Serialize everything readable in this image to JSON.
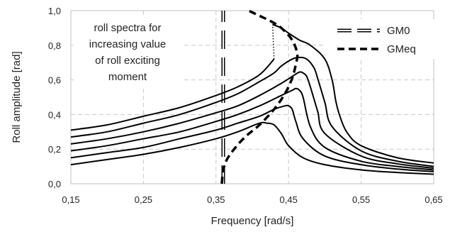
{
  "chart_data": {
    "type": "line",
    "xlabel": "Frequency  [rad/s]",
    "ylabel": "Roll amplitude [rad]",
    "xlim": [
      0.15,
      0.65
    ],
    "ylim": [
      0.0,
      1.0
    ],
    "x_ticks": [
      0.15,
      0.25,
      0.35,
      0.45,
      0.55,
      0.65
    ],
    "x_tick_labels": [
      "0,15",
      "0,25",
      "0,35",
      "0,45",
      "0,55",
      "0,65"
    ],
    "y_ticks": [
      0.0,
      0.2,
      0.4,
      0.6,
      0.8,
      1.0
    ],
    "y_tick_labels": [
      "0,0",
      "0,2",
      "0,4",
      "0,6",
      "0,8",
      "1,0"
    ],
    "grid": true,
    "legend_position": "top-right",
    "legend": [
      {
        "label": "GM0",
        "style": "long-dash double line"
      },
      {
        "label": "GMeq",
        "style": "thick dashed"
      }
    ],
    "annotation": [
      "roll spectra for",
      "increasing value",
      "of roll exciting",
      "moment"
    ],
    "gm0_line": {
      "x": 0.36,
      "y_range": [
        0.0,
        1.0
      ]
    },
    "gmeq_line": {
      "x": [
        0.358,
        0.36,
        0.365,
        0.375,
        0.39,
        0.41,
        0.43,
        0.445,
        0.455,
        0.46,
        0.462,
        0.455,
        0.44,
        0.425,
        0.41,
        0.395
      ],
      "y": [
        0.0,
        0.08,
        0.14,
        0.2,
        0.27,
        0.34,
        0.43,
        0.52,
        0.61,
        0.69,
        0.75,
        0.83,
        0.9,
        0.94,
        0.97,
        1.0
      ]
    },
    "series": [
      {
        "x": [
          0.15,
          0.2,
          0.25,
          0.3,
          0.35,
          0.38,
          0.41,
          0.42,
          0.43,
          0.44,
          0.45,
          0.47,
          0.5,
          0.55,
          0.6,
          0.65
        ],
        "y": [
          0.11,
          0.14,
          0.17,
          0.21,
          0.26,
          0.3,
          0.35,
          0.35,
          0.34,
          0.29,
          0.22,
          0.15,
          0.11,
          0.08,
          0.065,
          0.055
        ]
      },
      {
        "x": [
          0.15,
          0.2,
          0.25,
          0.3,
          0.35,
          0.38,
          0.41,
          0.43,
          0.445,
          0.45,
          0.455,
          0.46,
          0.47,
          0.5,
          0.55,
          0.6,
          0.65
        ],
        "y": [
          0.15,
          0.18,
          0.21,
          0.26,
          0.31,
          0.35,
          0.39,
          0.43,
          0.45,
          0.45,
          0.43,
          0.36,
          0.26,
          0.16,
          0.11,
          0.085,
          0.07
        ]
      },
      {
        "x": [
          0.15,
          0.2,
          0.25,
          0.3,
          0.35,
          0.38,
          0.41,
          0.44,
          0.455,
          0.46,
          0.465,
          0.47,
          0.48,
          0.5,
          0.55,
          0.6,
          0.65
        ],
        "y": [
          0.19,
          0.22,
          0.26,
          0.3,
          0.36,
          0.4,
          0.45,
          0.51,
          0.54,
          0.55,
          0.54,
          0.5,
          0.33,
          0.21,
          0.13,
          0.1,
          0.08
        ]
      },
      {
        "x": [
          0.15,
          0.2,
          0.25,
          0.3,
          0.35,
          0.38,
          0.41,
          0.44,
          0.455,
          0.465,
          0.47,
          0.475,
          0.48,
          0.49,
          0.5,
          0.55,
          0.6,
          0.65
        ],
        "y": [
          0.23,
          0.26,
          0.3,
          0.35,
          0.41,
          0.45,
          0.51,
          0.58,
          0.62,
          0.645,
          0.64,
          0.62,
          0.56,
          0.42,
          0.29,
          0.16,
          0.115,
          0.09
        ]
      },
      {
        "x": [
          0.15,
          0.2,
          0.25,
          0.3,
          0.35,
          0.38,
          0.41,
          0.43,
          0.44,
          0.455,
          0.465,
          0.475,
          0.485,
          0.49,
          0.5,
          0.51,
          0.55,
          0.6,
          0.65
        ],
        "y": [
          0.27,
          0.3,
          0.35,
          0.4,
          0.47,
          0.52,
          0.59,
          0.64,
          0.68,
          0.72,
          0.73,
          0.72,
          0.67,
          0.61,
          0.47,
          0.33,
          0.19,
          0.13,
          0.1
        ]
      },
      {
        "x": [
          0.15,
          0.2,
          0.25,
          0.3,
          0.35,
          0.38,
          0.41,
          0.43
        ],
        "y": [
          0.31,
          0.34,
          0.39,
          0.44,
          0.51,
          0.56,
          0.63,
          0.72
        ]
      },
      {
        "x": [
          0.428,
          0.44,
          0.45,
          0.465,
          0.48,
          0.5,
          0.51,
          0.515,
          0.52,
          0.53,
          0.55,
          0.6,
          0.65
        ],
        "y": [
          0.92,
          0.9,
          0.87,
          0.83,
          0.8,
          0.72,
          0.6,
          0.48,
          0.4,
          0.3,
          0.22,
          0.15,
          0.12
        ]
      }
    ],
    "dotted_jump": {
      "x": [
        0.43,
        0.428
      ],
      "y": [
        0.72,
        0.92
      ]
    }
  }
}
